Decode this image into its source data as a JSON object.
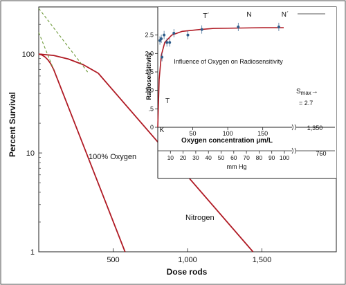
{
  "colors": {
    "curve": "#b01a24",
    "dashed": "#6e9a3a",
    "points": "#2f5d8a",
    "axis": "#222222",
    "background": "#ffffff"
  },
  "chart_data": [
    {
      "type": "line",
      "title": "",
      "xlabel": "Dose rods",
      "ylabel": "Percent Survival",
      "yscale": "log",
      "xlim": [
        0,
        2000
      ],
      "ylim": [
        1,
        300
      ],
      "x_ticks": [
        500,
        1000,
        1500
      ],
      "x_tick_labels": [
        "500",
        "1,000",
        "1,500"
      ],
      "y_ticks": [
        1,
        10,
        100
      ],
      "y_tick_labels": [
        "1",
        "10",
        "100"
      ],
      "series": [
        {
          "name": "100% Oxygen",
          "x": [
            0,
            20,
            40,
            60,
            80,
            100,
            580
          ],
          "y": [
            100,
            98,
            94,
            88,
            80,
            70,
            1
          ]
        },
        {
          "name": "Nitrogen",
          "x": [
            0,
            100,
            200,
            300,
            400,
            1440
          ],
          "y": [
            100,
            97,
            89,
            78,
            64,
            1
          ]
        },
        {
          "name": "",
          "style": "dashed",
          "x": [
            0,
            335
          ],
          "y": [
            290,
            64
          ]
        },
        {
          "name": "",
          "style": "dashed",
          "x": [
            0,
            100
          ],
          "y": [
            165,
            70
          ]
        }
      ],
      "annotations": [
        "100% Oxygen",
        "Nitrogen"
      ]
    },
    {
      "type": "line",
      "title": "Influence of Oxygen on Radiosensitivity",
      "xlabel": "Oxygen concentration µm/L",
      "ylabel": "Radiosensitivity",
      "xlim": [
        0,
        180
      ],
      "ylim": [
        0,
        3
      ],
      "x_ticks": [
        0,
        50,
        100,
        150
      ],
      "x_tick_labels": [
        "0",
        "50",
        "100",
        "150"
      ],
      "y_ticks": [
        0,
        0.5,
        1,
        1.5,
        2,
        2.5
      ],
      "y_tick_labels": [
        "0",
        ".5",
        "1.0",
        "1.5",
        "2.0",
        "2.5"
      ],
      "secondary_axis": {
        "label": "mm Hg",
        "ticks": [
          10,
          20,
          30,
          40,
          50,
          60,
          70,
          80,
          90,
          100
        ],
        "tick_labels": [
          "10",
          "20",
          "30",
          "40",
          "50",
          "60",
          "70",
          "80",
          "90",
          "100"
        ],
        "extra_label": "760"
      },
      "axis_break_label": "1,350",
      "series": [
        {
          "name": "",
          "x": [
            0,
            2,
            5,
            10,
            20,
            35,
            60,
            80,
            120,
            150,
            180
          ],
          "y": [
            0,
            1.3,
            1.95,
            2.3,
            2.5,
            2.6,
            2.65,
            2.68,
            2.69,
            2.7,
            2.7
          ]
        },
        {
          "name": "",
          "style": "points",
          "x": [
            3,
            5,
            6,
            9,
            13,
            17,
            23,
            43,
            63,
            115,
            173
          ],
          "y": [
            2.35,
            2.4,
            1.9,
            2.5,
            2.3,
            2.3,
            2.55,
            2.5,
            2.65,
            2.72,
            2.72
          ]
        }
      ],
      "point_labels": [
        "K",
        "T",
        "T´",
        "N",
        "N´"
      ],
      "annotation": {
        "label": "S",
        "subscript": "max",
        "arrow": "→",
        "value": "= 2.7"
      }
    }
  ]
}
